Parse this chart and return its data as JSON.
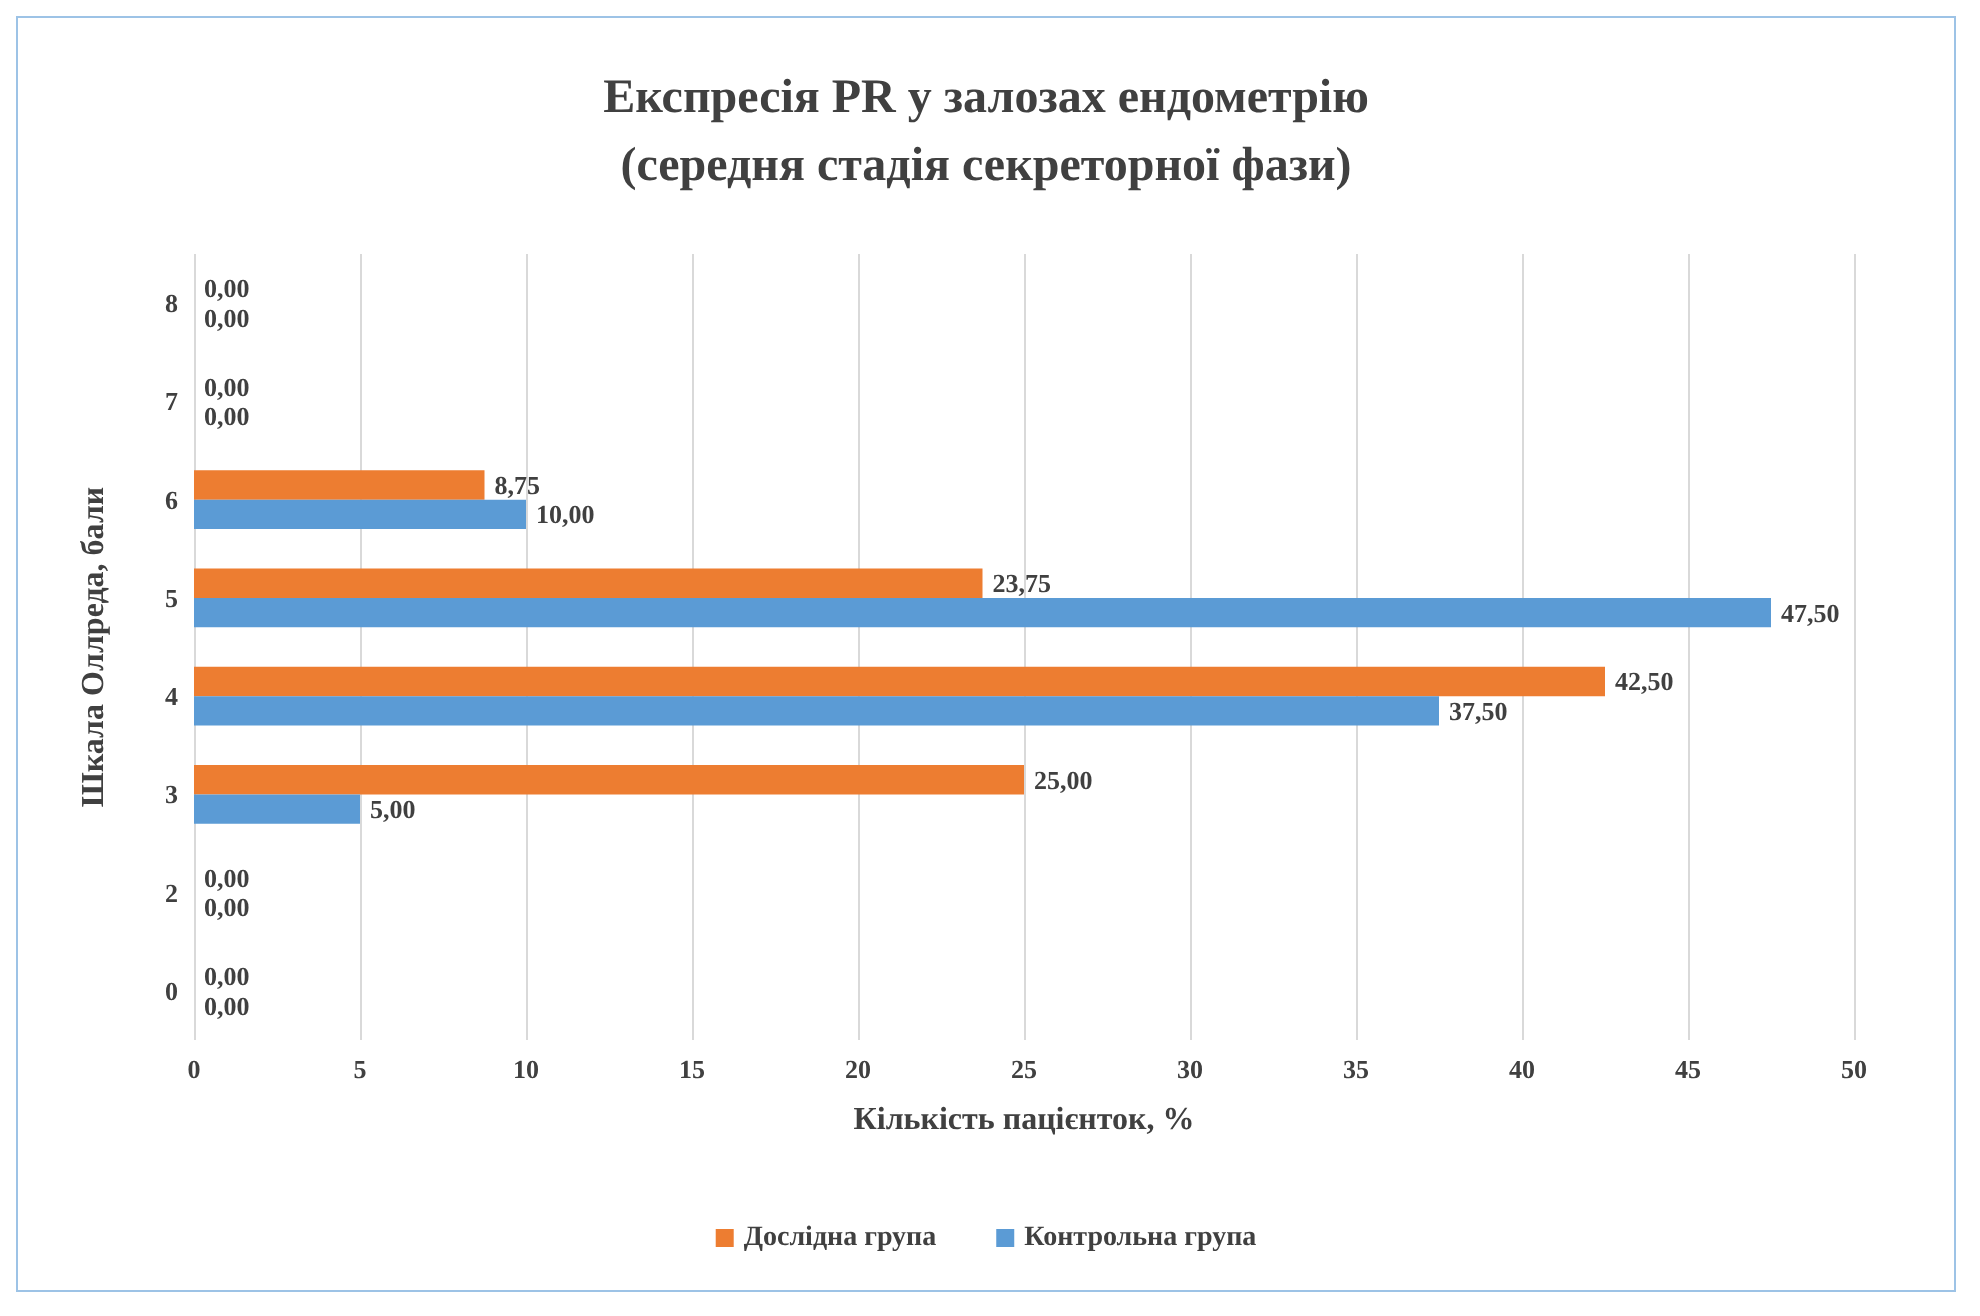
{
  "chart_data": {
    "type": "bar",
    "orientation": "horizontal",
    "title": "Експресія PR у залозах ендометрію\n(середня стадія секреторної фази)",
    "xlabel": "Кількість пацієнток, %",
    "ylabel": "Шкала Оллреда, бали",
    "categories": [
      "8",
      "7",
      "6",
      "5",
      "4",
      "3",
      "2",
      "0"
    ],
    "series": [
      {
        "name": "Дослідна група",
        "color": "#ed7d31",
        "values": [
          0,
          0,
          8.75,
          23.75,
          42.5,
          25,
          0,
          0
        ],
        "value_labels": [
          "0,00",
          "0,00",
          "8,75",
          "23,75",
          "42,50",
          "25,00",
          "0,00",
          "0,00"
        ]
      },
      {
        "name": "Контрольна група",
        "color": "#5b9bd5",
        "values": [
          0,
          0,
          10,
          47.5,
          37.5,
          5,
          0,
          0
        ],
        "value_labels": [
          "0,00",
          "0,00",
          "10,00",
          "47,50",
          "37,50",
          "5,00",
          "0,00",
          "0,00"
        ]
      }
    ],
    "xlim": [
      0,
      50
    ],
    "xticks": [
      0,
      5,
      10,
      15,
      20,
      25,
      30,
      35,
      40,
      45,
      50
    ],
    "grid": "x",
    "legend": "bottom"
  }
}
